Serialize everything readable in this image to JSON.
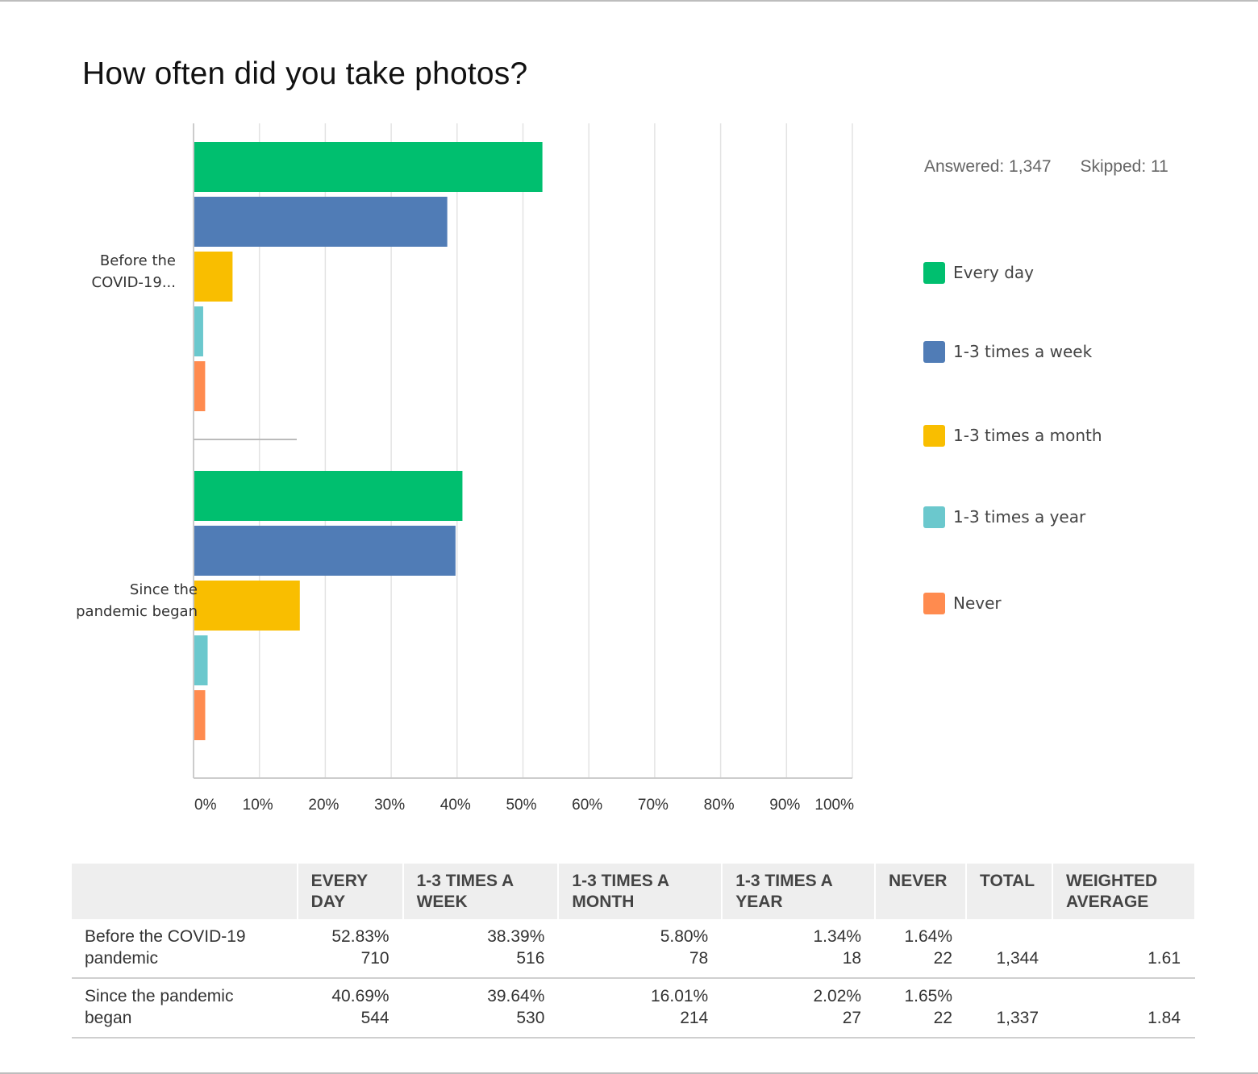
{
  "title": "How often did you take photos?",
  "stats": {
    "answered": "Answered: 1,347",
    "skipped": "Skipped: 11"
  },
  "colors": {
    "every_day": "#00bf6f",
    "week": "#507cb6",
    "month": "#f9be00",
    "year": "#6bc8cd",
    "never": "#ff8b4f",
    "grid": "#e3e3e3",
    "axis": "#cccccc"
  },
  "legend": [
    {
      "label": "Every day",
      "color": "#00bf6f"
    },
    {
      "label": "1-3 times a week",
      "color": "#507cb6"
    },
    {
      "label": "1-3 times a month",
      "color": "#f9be00"
    },
    {
      "label": "1-3 times a year",
      "color": "#6bc8cd"
    },
    {
      "label": "Never",
      "color": "#ff8b4f"
    }
  ],
  "chart_data": {
    "type": "bar",
    "orientation": "horizontal",
    "title": "How often did you take photos?",
    "categories": [
      "Before the COVID-19 pandemic",
      "Since the pandemic began"
    ],
    "category_labels": [
      [
        "Before the",
        "COVID-19..."
      ],
      [
        "Since the",
        "pandemic began"
      ]
    ],
    "series": [
      {
        "name": "Every day",
        "color": "#00bf6f",
        "values": [
          52.83,
          40.69
        ]
      },
      {
        "name": "1-3 times a week",
        "color": "#507cb6",
        "values": [
          38.39,
          39.64
        ]
      },
      {
        "name": "1-3 times a month",
        "color": "#f9be00",
        "values": [
          5.8,
          16.01
        ]
      },
      {
        "name": "1-3 times a year",
        "color": "#6bc8cd",
        "values": [
          1.34,
          2.02
        ]
      },
      {
        "name": "Never",
        "color": "#ff8b4f",
        "values": [
          1.64,
          1.65
        ]
      }
    ],
    "xlim": [
      0,
      100
    ],
    "xticks": [
      "0%",
      "10%",
      "20%",
      "30%",
      "40%",
      "50%",
      "60%",
      "70%",
      "80%",
      "90%",
      "100%"
    ],
    "grid": true,
    "legend": "right"
  },
  "table": {
    "headers": [
      "",
      "EVERY DAY",
      "1-3 TIMES A WEEK",
      "1-3 TIMES A MONTH",
      "1-3 TIMES A YEAR",
      "NEVER",
      "TOTAL",
      "WEIGHTED AVERAGE"
    ],
    "rows": [
      {
        "label": "Before the COVID-19 pandemic",
        "cells": [
          {
            "pct": "52.83%",
            "count": "710"
          },
          {
            "pct": "38.39%",
            "count": "516"
          },
          {
            "pct": "5.80%",
            "count": "78"
          },
          {
            "pct": "1.34%",
            "count": "18"
          },
          {
            "pct": "1.64%",
            "count": "22"
          }
        ],
        "total": "1,344",
        "weighted_average": "1.61"
      },
      {
        "label": "Since the pandemic began",
        "cells": [
          {
            "pct": "40.69%",
            "count": "544"
          },
          {
            "pct": "39.64%",
            "count": "530"
          },
          {
            "pct": "16.01%",
            "count": "214"
          },
          {
            "pct": "2.02%",
            "count": "27"
          },
          {
            "pct": "1.65%",
            "count": "22"
          }
        ],
        "total": "1,337",
        "weighted_average": "1.84"
      }
    ]
  }
}
